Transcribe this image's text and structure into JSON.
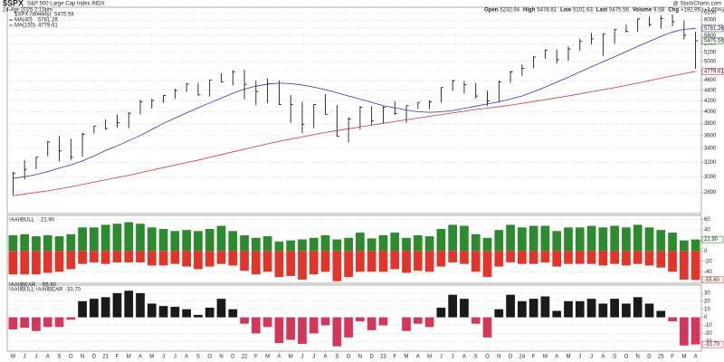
{
  "header": {
    "title": "$SPX",
    "subtitle": "S&P 500 Large Cap Index  INDX",
    "date": "24-Apr-2025 2:15pm",
    "credit": "@ StockCharts.com",
    "quote": [
      [
        "Open",
        "5232.94"
      ],
      [
        "High",
        "5478.81"
      ],
      [
        "Low",
        "5101.63"
      ],
      [
        "Last",
        "5475.56"
      ],
      [
        "Volume",
        "9.5B"
      ],
      [
        "Chg",
        "+192.95 (+3.65%)"
      ]
    ]
  },
  "chart_data": [
    {
      "type": "ohlc",
      "log_scale": true,
      "grid": true,
      "ylim": [
        2550,
        6350
      ],
      "yticks": [
        2800,
        3000,
        3200,
        3400,
        3600,
        3800,
        4000,
        4200,
        4400,
        4600,
        4800,
        5000,
        5200,
        5400,
        5600,
        5800,
        6000,
        6200
      ],
      "price": {
        "name": "$SPX (Weekly)",
        "last_label": "5475.56",
        "color": "#000000",
        "high": [
          3068,
          3233,
          3280,
          3515,
          3588,
          3549,
          3646,
          3760,
          3870,
          3950,
          3994,
          4218,
          4238,
          4302,
          4429,
          4537,
          4546,
          4608,
          4743,
          4808,
          4819,
          4595,
          4637,
          4594,
          4307,
          4177,
          4140,
          4325,
          4120,
          3905,
          4100,
          4101,
          4095,
          4195,
          4110,
          4170,
          4206,
          4458,
          4607,
          4584,
          4541,
          4393,
          4587,
          4793,
          4932,
          5111,
          5265,
          5264,
          5341,
          5524,
          5670,
          5651,
          5767,
          5878,
          6044,
          6099,
          6128,
          6147,
          5986,
          5695
        ],
        "low": [
          2766,
          2965,
          3101,
          3284,
          3209,
          3233,
          3279,
          3633,
          3695,
          3725,
          3723,
          3955,
          4056,
          4164,
          4233,
          4368,
          4305,
          4279,
          4560,
          4495,
          4223,
          4115,
          4157,
          4125,
          3811,
          3637,
          3721,
          3955,
          3585,
          3492,
          3698,
          3764,
          3795,
          3944,
          3809,
          4049,
          4048,
          4166,
          4385,
          4336,
          4238,
          4104,
          4167,
          4546,
          4683,
          4845,
          5057,
          4953,
          5012,
          5234,
          5390,
          5120,
          5403,
          5674,
          5696,
          5832,
          5773,
          5837,
          5505,
          4835
        ],
        "close": [
          3044,
          3100,
          3271,
          3500,
          3363,
          3270,
          3622,
          3756,
          3714,
          3811,
          3973,
          4181,
          4204,
          4298,
          4395,
          4523,
          4308,
          4605,
          4567,
          4766,
          4516,
          4374,
          4530,
          4132,
          4132,
          3785,
          4130,
          3955,
          3586,
          3872,
          4080,
          3840,
          4077,
          3970,
          4109,
          4169,
          4180,
          4450,
          4589,
          4508,
          4288,
          4194,
          4568,
          4770,
          4846,
          5096,
          5254,
          5036,
          5278,
          5460,
          5522,
          5648,
          5762,
          5705,
          6032,
          5882,
          6040,
          5955,
          5612,
          5475.56
        ]
      },
      "series": [
        {
          "name": "MA(40)",
          "last_label": "5781.26",
          "color": "#2b3a9e",
          "values": [
            2980,
            3000,
            3030,
            3070,
            3120,
            3160,
            3220,
            3290,
            3370,
            3440,
            3520,
            3600,
            3700,
            3800,
            3890,
            3980,
            4070,
            4160,
            4250,
            4340,
            4420,
            4480,
            4520,
            4540,
            4530,
            4500,
            4460,
            4410,
            4350,
            4290,
            4230,
            4170,
            4110,
            4070,
            4030,
            4000,
            3990,
            4000,
            4020,
            4060,
            4100,
            4140,
            4180,
            4230,
            4290,
            4370,
            4460,
            4560,
            4660,
            4770,
            4880,
            4990,
            5100,
            5220,
            5340,
            5460,
            5580,
            5690,
            5760,
            5781.26
          ]
        },
        {
          "name": "MA(150)",
          "last_label": "4779.61",
          "color": "#c8323c",
          "values": [
            2760,
            2780,
            2800,
            2820,
            2845,
            2870,
            2900,
            2930,
            2960,
            2990,
            3020,
            3055,
            3090,
            3125,
            3160,
            3195,
            3230,
            3270,
            3310,
            3350,
            3390,
            3430,
            3470,
            3510,
            3545,
            3580,
            3615,
            3650,
            3680,
            3710,
            3740,
            3770,
            3800,
            3830,
            3860,
            3890,
            3920,
            3950,
            3980,
            4010,
            4040,
            4065,
            4090,
            4120,
            4150,
            4185,
            4220,
            4255,
            4290,
            4330,
            4370,
            4410,
            4450,
            4495,
            4540,
            4590,
            4640,
            4690,
            4735,
            4779.61
          ]
        }
      ]
    },
    {
      "type": "bar",
      "grid": true,
      "ylim": [
        -62,
        68
      ],
      "yticks": [
        -40,
        -20,
        0,
        20,
        40,
        60
      ],
      "series": [
        {
          "name": "!AAIIBULL",
          "last_label": "21.90",
          "color": "#2e8a2e",
          "values": [
            30,
            32,
            28,
            30,
            28,
            32,
            45,
            45,
            50,
            52,
            55,
            52,
            45,
            42,
            38,
            40,
            38,
            42,
            48,
            38,
            30,
            25,
            28,
            18,
            20,
            22,
            25,
            30,
            22,
            25,
            35,
            24,
            30,
            35,
            25,
            30,
            28,
            42,
            50,
            48,
            32,
            25,
            40,
            50,
            45,
            48,
            48,
            38,
            45,
            45,
            48,
            45,
            48,
            45,
            50,
            45,
            40,
            35,
            20,
            21.9
          ]
        },
        {
          "name": "!AAIIBEAR",
          "last_label": "-55.60",
          "color": "#e0352b",
          "values": [
            -45,
            -45,
            -45,
            -42,
            -40,
            -35,
            -25,
            -22,
            -25,
            -22,
            -22,
            -22,
            -28,
            -28,
            -25,
            -30,
            -35,
            -30,
            -25,
            -28,
            -38,
            -45,
            -40,
            -50,
            -48,
            -55,
            -45,
            -40,
            -58,
            -50,
            -40,
            -40,
            -40,
            -35,
            -42,
            -38,
            -40,
            -30,
            -22,
            -25,
            -40,
            -50,
            -30,
            -22,
            -25,
            -25,
            -22,
            -30,
            -25,
            -25,
            -25,
            -28,
            -25,
            -28,
            -25,
            -28,
            -32,
            -40,
            -55,
            -55.6
          ]
        }
      ]
    },
    {
      "type": "signbar",
      "grid": true,
      "ylim": [
        -42,
        40
      ],
      "yticks": [
        -30,
        -20,
        -10,
        0,
        10,
        20,
        30
      ],
      "categories": [
        "M",
        "J",
        "J",
        "A",
        "S",
        "O",
        "N",
        "D",
        "21",
        "F",
        "M",
        "A",
        "M",
        "J",
        "J",
        "A",
        "S",
        "O",
        "N",
        "D",
        "22",
        "F",
        "M",
        "A",
        "M",
        "J",
        "J",
        "A",
        "S",
        "O",
        "N",
        "D",
        "23",
        "F",
        "M",
        "A",
        "M",
        "J",
        "J",
        "A",
        "S",
        "O",
        "N",
        "D",
        "24",
        "F",
        "M",
        "A",
        "M",
        "J",
        "J",
        "A",
        "S",
        "O",
        "N",
        "D",
        "25",
        "F",
        "M",
        "A"
      ],
      "series": [
        {
          "name": "!AAIIBULL-!AAIIBEAR",
          "last_label": "-33.70",
          "pos_color": "#1a1a1a",
          "neg_color": "#d3375c",
          "values": [
            -15,
            -13,
            -17,
            -12,
            -12,
            -3,
            20,
            23,
            25,
            30,
            33,
            30,
            17,
            14,
            13,
            10,
            3,
            12,
            23,
            10,
            -8,
            -20,
            -12,
            -32,
            -28,
            -33,
            -20,
            -10,
            -36,
            -25,
            -5,
            -16,
            -10,
            0,
            -17,
            -8,
            -12,
            12,
            28,
            23,
            -8,
            -25,
            10,
            28,
            20,
            23,
            26,
            8,
            20,
            20,
            23,
            17,
            23,
            17,
            25,
            17,
            8,
            -5,
            -35,
            -33.7
          ]
        }
      ]
    }
  ]
}
